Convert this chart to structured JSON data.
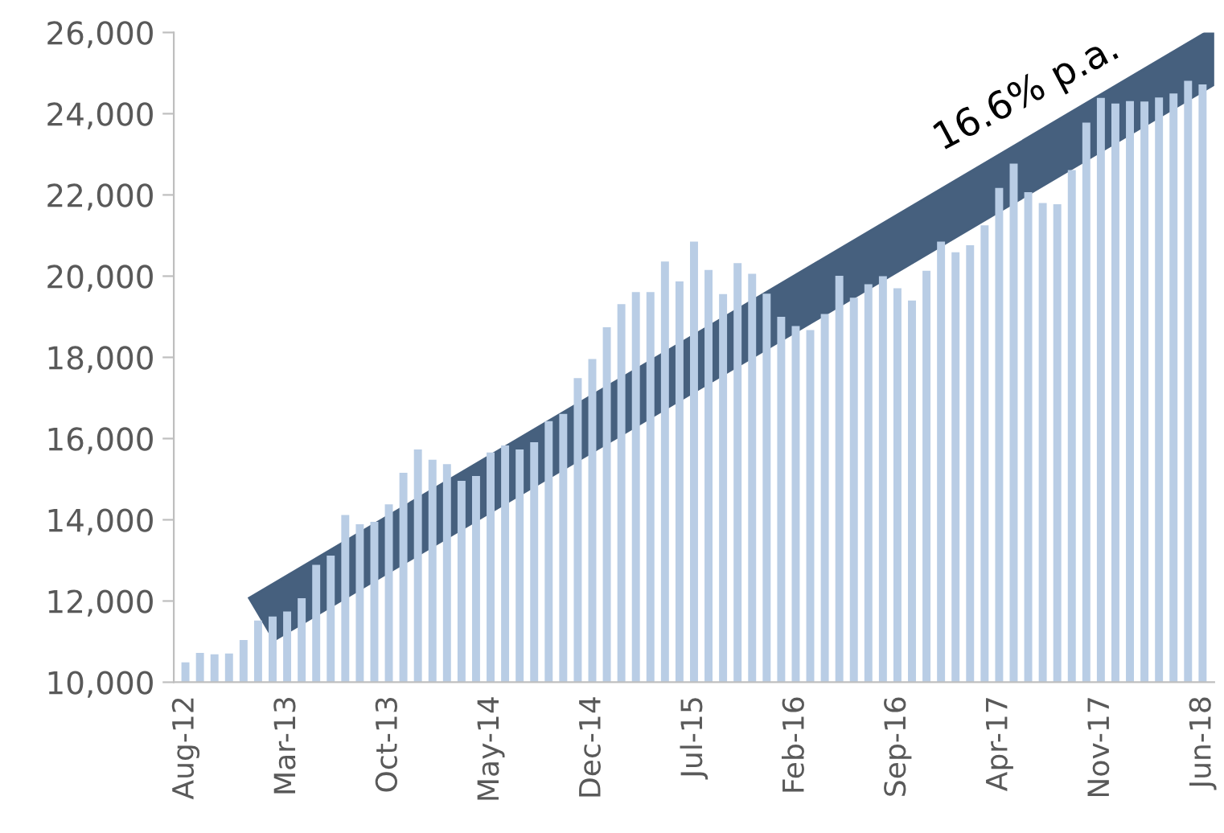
{
  "chart_data": {
    "type": "bar",
    "categories": [
      "Aug-12",
      null,
      null,
      null,
      null,
      null,
      null,
      "Mar-13",
      null,
      null,
      null,
      null,
      null,
      null,
      "Oct-13",
      null,
      null,
      null,
      null,
      null,
      null,
      "May-14",
      null,
      null,
      null,
      null,
      null,
      null,
      "Dec-14",
      null,
      null,
      null,
      null,
      null,
      null,
      "Jul-15",
      null,
      null,
      null,
      null,
      null,
      null,
      "Feb-16",
      null,
      null,
      null,
      null,
      null,
      null,
      "Sep-16",
      null,
      null,
      null,
      null,
      null,
      null,
      "Apr-17",
      null,
      null,
      null,
      null,
      null,
      null,
      "Nov-17",
      null,
      null,
      null,
      null,
      null,
      null,
      "Jun-18"
    ],
    "values": [
      10490,
      10720,
      10690,
      10710,
      11040,
      11520,
      11620,
      11740,
      12070,
      12890,
      13120,
      14120,
      13890,
      13950,
      14380,
      15160,
      15730,
      15480,
      15370,
      14960,
      15080,
      15660,
      15830,
      15730,
      15910,
      16430,
      16610,
      17490,
      17960,
      18740,
      19310,
      19610,
      19610,
      20360,
      19870,
      20850,
      20150,
      19560,
      20320,
      20060,
      19570,
      19000,
      18770,
      18670,
      19070,
      20010,
      19470,
      19800,
      20000,
      19700,
      19400,
      20130,
      20850,
      20590,
      20760,
      21250,
      22170,
      22770,
      22070,
      21800,
      21770,
      22610,
      23780,
      24390,
      24250,
      24310,
      24300,
      24400,
      24500,
      24810,
      24720
    ],
    "color": "#b9cde5",
    "ylim": [
      10000,
      26000
    ],
    "yticks": [
      {
        "value": 10000,
        "label": "10,000"
      },
      {
        "value": 12000,
        "label": "12,000"
      },
      {
        "value": 14000,
        "label": "14,000"
      },
      {
        "value": 16000,
        "label": "16,000"
      },
      {
        "value": 18000,
        "label": "18,000"
      },
      {
        "value": 20000,
        "label": "20,000"
      },
      {
        "value": 22000,
        "label": "22,000"
      },
      {
        "value": 24000,
        "label": "24,000"
      },
      {
        "value": 26000,
        "label": "26,000"
      }
    ],
    "grid": false,
    "annotations": [
      "16.6% p.a."
    ]
  }
}
